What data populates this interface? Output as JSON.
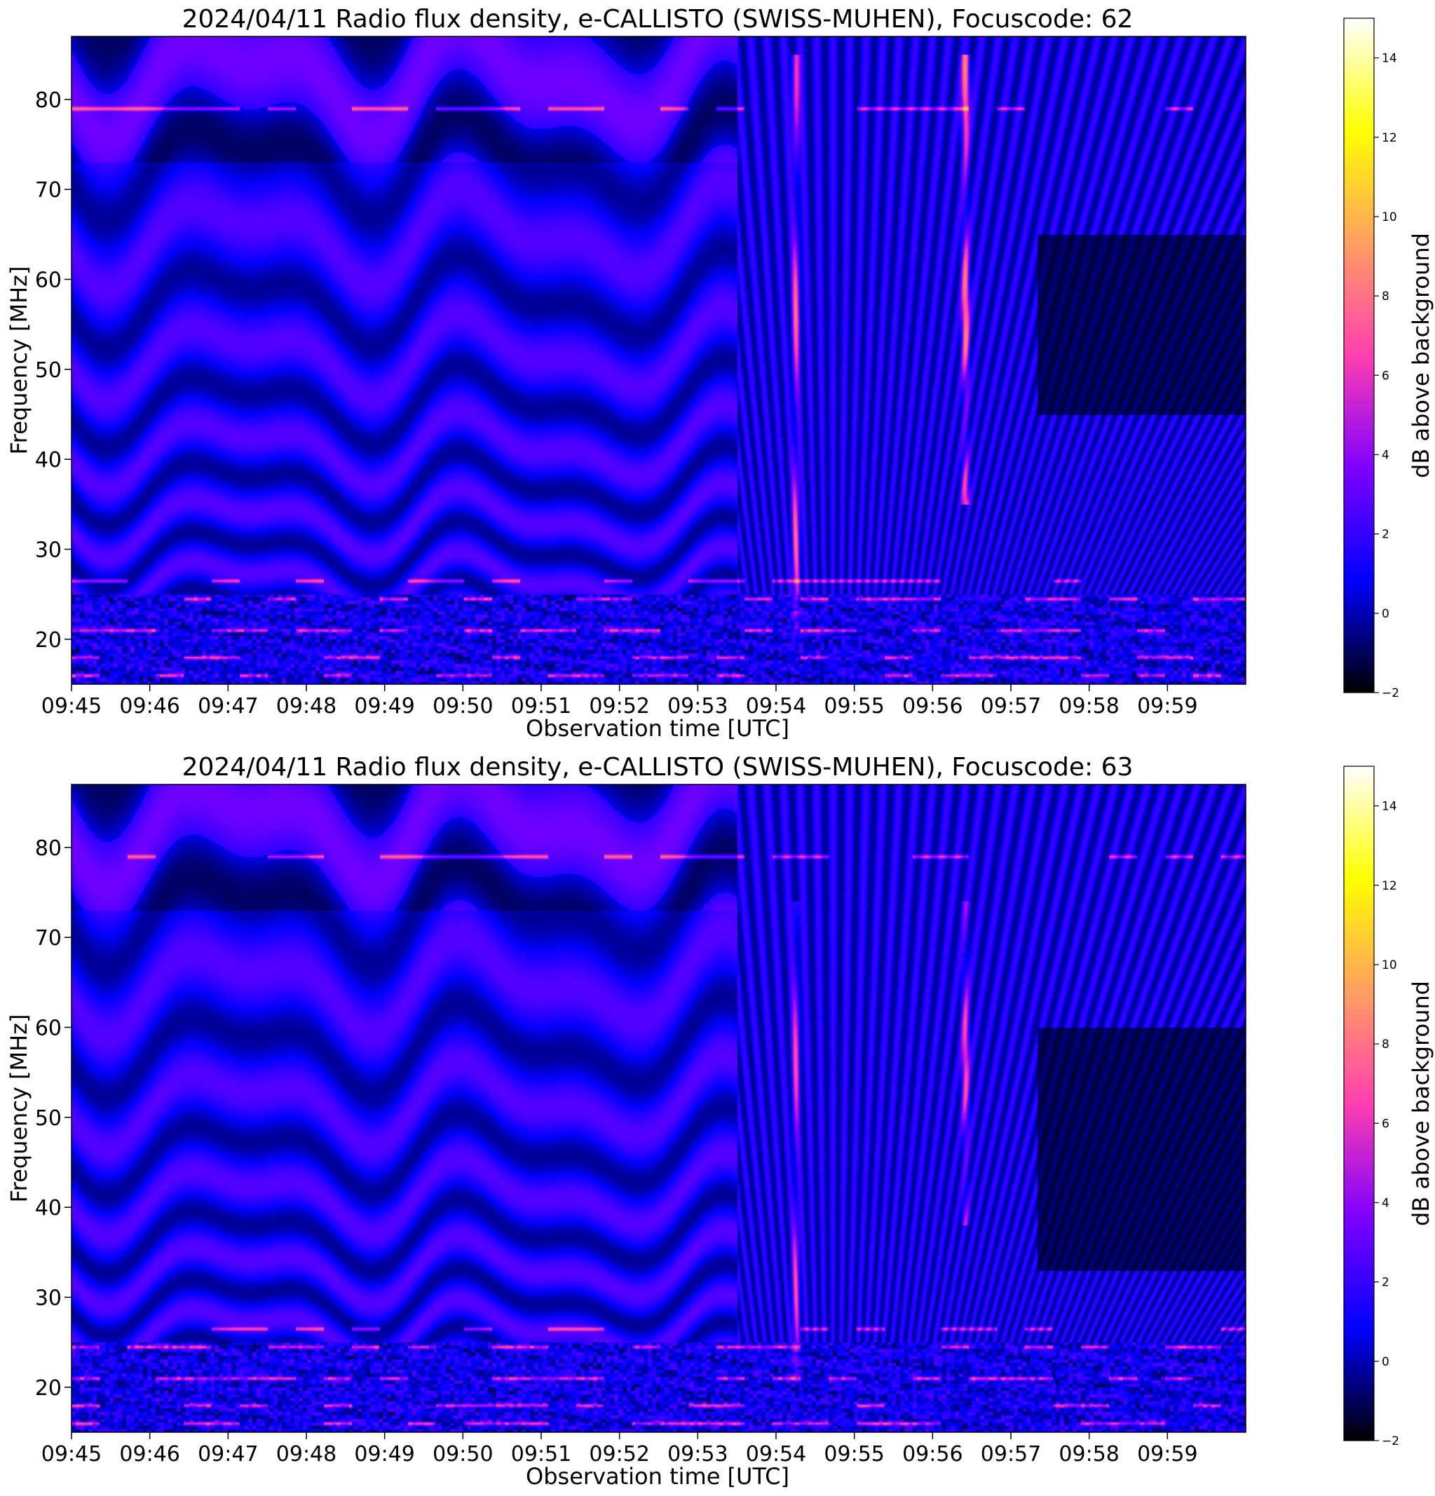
{
  "figure": {
    "colormap": "gnuplot2",
    "colormap_stops": [
      "#000000",
      "#0000ff",
      "#7f00ff",
      "#ff3fb0",
      "#ff9f60",
      "#ffff00",
      "#ffffff"
    ]
  },
  "chart_data": [
    {
      "type": "heatmap",
      "title": "2024/04/11  Radio flux density, e-CALLISTO (SWISS-MUHEN), Focuscode: 62",
      "xlabel": "Observation time [UTC]",
      "ylabel": "Frequency [MHz]",
      "colorbar_label": "dB above background",
      "x_ticks": [
        "09:45",
        "09:46",
        "09:47",
        "09:48",
        "09:49",
        "09:50",
        "09:51",
        "09:52",
        "09:53",
        "09:54",
        "09:55",
        "09:56",
        "09:57",
        "09:58",
        "09:59"
      ],
      "x_range_minutes": [
        0,
        15
      ],
      "y_ticks": [
        20,
        30,
        40,
        50,
        60,
        70,
        80
      ],
      "ylim": [
        15,
        87
      ],
      "colorbar_ticks": [
        -2,
        0,
        2,
        4,
        6,
        8,
        10,
        12,
        14
      ],
      "clim": [
        -2,
        15
      ],
      "features": {
        "type_iii_bursts": [
          {
            "time": "09:54:15",
            "freq_range_mhz": [
              20,
              85
            ],
            "peak_db": 6
          },
          {
            "time": "09:56:25",
            "freq_range_mhz": [
              35,
              85
            ],
            "peak_db": 8
          }
        ],
        "band_shift_after_time": "09:53:30",
        "quiet_block": {
          "time_range": [
            "09:57:20",
            "09:59:59"
          ],
          "freq_range_mhz": [
            45,
            65
          ]
        },
        "rfi_lines_mhz": [
          16,
          18,
          21,
          24.5,
          26.5,
          79
        ]
      }
    },
    {
      "type": "heatmap",
      "title": "2024/04/11  Radio flux density, e-CALLISTO (SWISS-MUHEN), Focuscode: 63",
      "xlabel": "Observation time [UTC]",
      "ylabel": "Frequency [MHz]",
      "colorbar_label": "dB above background",
      "x_ticks": [
        "09:45",
        "09:46",
        "09:47",
        "09:48",
        "09:49",
        "09:50",
        "09:51",
        "09:52",
        "09:53",
        "09:54",
        "09:55",
        "09:56",
        "09:57",
        "09:58",
        "09:59"
      ],
      "x_range_minutes": [
        0,
        15
      ],
      "y_ticks": [
        20,
        30,
        40,
        50,
        60,
        70,
        80
      ],
      "ylim": [
        15,
        87
      ],
      "colorbar_ticks": [
        -2,
        0,
        2,
        4,
        6,
        8,
        10,
        12,
        14
      ],
      "clim": [
        -2,
        15
      ],
      "features": {
        "type_iii_bursts": [
          {
            "time": "09:54:15",
            "freq_range_mhz": [
              20,
              74
            ],
            "peak_db": 5
          },
          {
            "time": "09:56:25",
            "freq_range_mhz": [
              38,
              74
            ],
            "peak_db": 6
          }
        ],
        "band_shift_after_time": "09:53:30",
        "quiet_block": {
          "time_range": [
            "09:57:20",
            "09:59:59"
          ],
          "freq_range_mhz": [
            33,
            60
          ]
        },
        "rfi_lines_mhz": [
          16,
          18,
          21,
          24.5,
          26.5,
          79
        ]
      }
    }
  ]
}
